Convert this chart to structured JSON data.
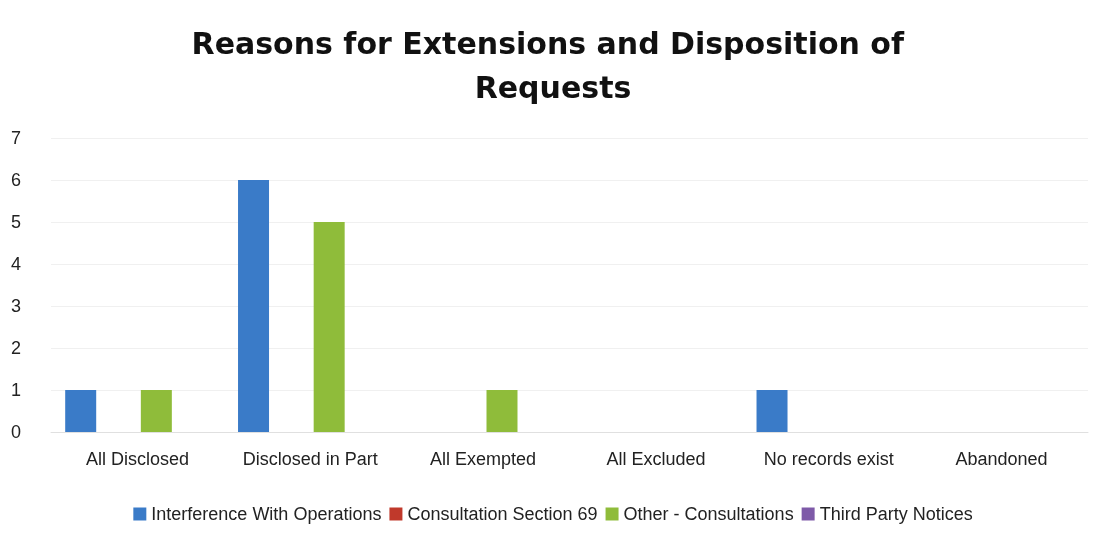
{
  "chart_data": {
    "type": "bar",
    "title": "Reasons for Extensions and Disposition of Requests",
    "categories": [
      "All Disclosed",
      "Disclosed in Part",
      "All Exempted",
      "All Excluded",
      "No records exist",
      "Abandoned"
    ],
    "series": [
      {
        "name": "Interference With Operations",
        "color": "#3a7bc8",
        "values": [
          1,
          6,
          0,
          0,
          1,
          0
        ]
      },
      {
        "name": "Consultation Section 69",
        "color": "#c0392b",
        "values": [
          0,
          0,
          0,
          0,
          0,
          0
        ]
      },
      {
        "name": "Other - Consultations",
        "color": "#8fbc3a",
        "values": [
          1,
          5,
          1,
          0,
          0,
          0
        ]
      },
      {
        "name": "Third Party Notices",
        "color": "#7e5aa8",
        "values": [
          0,
          0,
          0,
          0,
          0,
          0
        ]
      }
    ],
    "ylim": [
      0,
      7
    ],
    "yticks": [
      0,
      1,
      2,
      3,
      4,
      5,
      6,
      7
    ],
    "grid": "y",
    "legend": "bottom"
  }
}
